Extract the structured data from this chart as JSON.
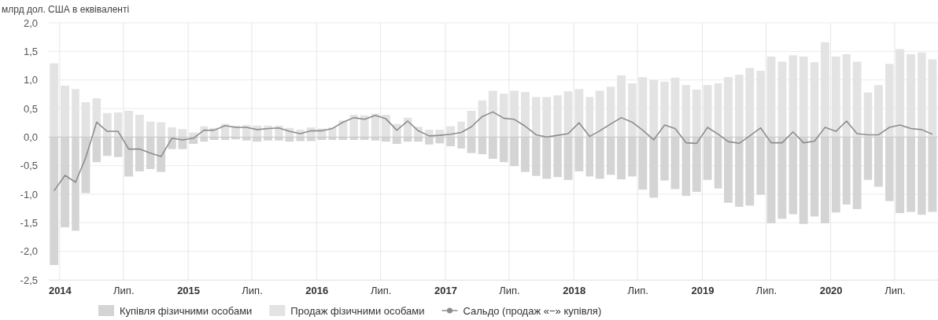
{
  "chart_data": {
    "type": "bar",
    "ylabel": "млрд дол. США в еквіваленті",
    "stacked": true,
    "x": [
      "2013-12-16",
      "2014-01-16",
      "2014-02-15",
      "2014-03-16",
      "2014-04-16",
      "2014-05-16",
      "2014-06-16",
      "2014-07-16",
      "2014-08-16",
      "2014-09-16",
      "2014-10-16",
      "2014-11-16",
      "2014-12-16",
      "2015-01-16",
      "2015-02-15",
      "2015-03-16",
      "2015-04-16",
      "2015-05-16",
      "2015-06-16",
      "2015-07-16",
      "2015-08-16",
      "2015-09-16",
      "2015-10-16",
      "2015-11-16",
      "2015-12-16",
      "2016-01-16",
      "2016-02-15",
      "2016-03-16",
      "2016-04-16",
      "2016-05-16",
      "2016-06-16",
      "2016-07-16",
      "2016-08-16",
      "2016-09-16",
      "2016-10-16",
      "2016-11-16",
      "2016-12-16",
      "2017-01-16",
      "2017-02-15",
      "2017-03-16",
      "2017-04-16",
      "2017-05-16",
      "2017-06-16",
      "2017-07-16",
      "2017-08-16",
      "2017-09-16",
      "2017-10-16",
      "2017-11-16",
      "2017-12-16",
      "2018-01-16",
      "2018-02-15",
      "2018-03-16",
      "2018-04-16",
      "2018-05-16",
      "2018-06-16",
      "2018-07-16",
      "2018-08-16",
      "2018-09-16",
      "2018-10-16",
      "2018-11-16",
      "2018-12-16",
      "2019-01-16",
      "2019-02-15",
      "2019-03-16",
      "2019-04-16",
      "2019-05-16",
      "2019-06-16",
      "2019-07-16",
      "2019-08-16",
      "2019-09-16",
      "2019-10-16",
      "2019-11-16",
      "2019-12-16",
      "2020-01-16",
      "2020-02-15",
      "2020-03-16",
      "2020-04-16",
      "2020-05-16",
      "2020-06-16",
      "2020-07-16",
      "2020-08-16",
      "2020-09-16",
      "2020-10-16"
    ],
    "series": [
      {
        "name": "Купівля фізичними особами",
        "color": "#d4d4d4",
        "values": [
          -2.24,
          -1.58,
          -1.64,
          -0.98,
          -0.44,
          -0.33,
          -0.35,
          -0.69,
          -0.6,
          -0.56,
          -0.61,
          -0.21,
          -0.21,
          -0.12,
          -0.08,
          -0.05,
          -0.05,
          -0.04,
          -0.06,
          -0.08,
          -0.06,
          -0.06,
          -0.08,
          -0.07,
          -0.07,
          -0.05,
          -0.05,
          -0.05,
          -0.05,
          -0.05,
          -0.06,
          -0.08,
          -0.12,
          -0.08,
          -0.08,
          -0.13,
          -0.11,
          -0.16,
          -0.2,
          -0.28,
          -0.3,
          -0.38,
          -0.44,
          -0.51,
          -0.61,
          -0.68,
          -0.73,
          -0.7,
          -0.75,
          -0.6,
          -0.69,
          -0.73,
          -0.66,
          -0.74,
          -0.69,
          -0.92,
          -1.06,
          -0.76,
          -0.91,
          -1.03,
          -0.96,
          -0.75,
          -0.9,
          -1.15,
          -1.22,
          -1.2,
          -1.01,
          -1.51,
          -1.43,
          -1.35,
          -1.52,
          -1.39,
          -1.51,
          -1.32,
          -1.18,
          -1.26,
          -0.75,
          -0.87,
          -1.12,
          -1.33,
          -1.31,
          -1.36,
          -1.31
        ]
      },
      {
        "name": "Продаж фізичними особами",
        "color": "#e3e3e3",
        "values": [
          1.29,
          0.9,
          0.84,
          0.61,
          0.68,
          0.42,
          0.43,
          0.46,
          0.39,
          0.27,
          0.26,
          0.17,
          0.14,
          0.08,
          0.19,
          0.16,
          0.23,
          0.2,
          0.21,
          0.2,
          0.2,
          0.2,
          0.16,
          0.13,
          0.17,
          0.15,
          0.17,
          0.29,
          0.39,
          0.38,
          0.41,
          0.39,
          0.23,
          0.34,
          0.18,
          0.13,
          0.13,
          0.19,
          0.27,
          0.46,
          0.64,
          0.81,
          0.76,
          0.81,
          0.79,
          0.7,
          0.7,
          0.73,
          0.8,
          0.84,
          0.7,
          0.81,
          0.88,
          1.08,
          0.94,
          1.05,
          1.0,
          0.97,
          1.04,
          0.91,
          0.83,
          0.91,
          0.94,
          1.05,
          1.09,
          1.21,
          1.16,
          1.41,
          1.32,
          1.43,
          1.41,
          1.31,
          1.66,
          1.41,
          1.45,
          1.32,
          0.78,
          0.91,
          1.28,
          1.54,
          1.45,
          1.48,
          1.36
        ]
      },
      {
        "name": "Сальдо (продаж «−» купівля)",
        "type": "line",
        "color": "#8c8c8c",
        "values": [
          -0.94,
          -0.67,
          -0.79,
          -0.36,
          0.26,
          0.1,
          0.1,
          -0.21,
          -0.21,
          -0.28,
          -0.34,
          -0.02,
          -0.05,
          -0.02,
          0.12,
          0.12,
          0.2,
          0.17,
          0.17,
          0.13,
          0.15,
          0.16,
          0.1,
          0.06,
          0.11,
          0.11,
          0.15,
          0.26,
          0.34,
          0.31,
          0.38,
          0.32,
          0.12,
          0.28,
          0.11,
          0.02,
          0.03,
          0.05,
          0.08,
          0.18,
          0.36,
          0.44,
          0.33,
          0.31,
          0.19,
          0.04,
          0.0,
          0.03,
          0.06,
          0.25,
          0.01,
          0.11,
          0.23,
          0.34,
          0.26,
          0.12,
          -0.05,
          0.21,
          0.15,
          -0.1,
          -0.11,
          0.17,
          0.05,
          -0.08,
          -0.11,
          0.02,
          0.16,
          -0.1,
          -0.1,
          0.09,
          -0.1,
          -0.07,
          0.17,
          0.1,
          0.28,
          0.06,
          0.04,
          0.04,
          0.17,
          0.21,
          0.15,
          0.13,
          0.05
        ]
      }
    ],
    "xlim": [
      "2013-12",
      "2020-11"
    ],
    "xticks": [
      {
        "value": "2014-01",
        "label": "2014"
      },
      {
        "value": "2014-07",
        "label": "Лип."
      },
      {
        "value": "2015-01",
        "label": "2015"
      },
      {
        "value": "2015-07",
        "label": "Лип."
      },
      {
        "value": "2016-01",
        "label": "2016"
      },
      {
        "value": "2016-07",
        "label": "Лип."
      },
      {
        "value": "2017-01",
        "label": "2017"
      },
      {
        "value": "2017-07",
        "label": "Лип."
      },
      {
        "value": "2018-01",
        "label": "2018"
      },
      {
        "value": "2018-07",
        "label": "Лип."
      },
      {
        "value": "2019-01",
        "label": "2019"
      },
      {
        "value": "2019-07",
        "label": "Лип."
      },
      {
        "value": "2020-01",
        "label": "2020"
      },
      {
        "value": "2020-07",
        "label": "Лип."
      }
    ],
    "ylim": [
      -2.5,
      2
    ],
    "yticks": [
      {
        "value": -2.5,
        "label": "-2,5"
      },
      {
        "value": -2,
        "label": "-2,0"
      },
      {
        "value": -1.5,
        "label": "-1,5"
      },
      {
        "value": -1,
        "label": "-1,0"
      },
      {
        "value": -0.5,
        "label": "-0,5"
      },
      {
        "value": 0,
        "label": "0,0"
      },
      {
        "value": 0.5,
        "label": "0,5"
      },
      {
        "value": 1,
        "label": "1,0"
      },
      {
        "value": 1.5,
        "label": "1,5"
      },
      {
        "value": 2,
        "label": "2,0"
      }
    ],
    "grid": true,
    "legend": "bottom",
    "marker": "none",
    "line_style": "solid"
  }
}
